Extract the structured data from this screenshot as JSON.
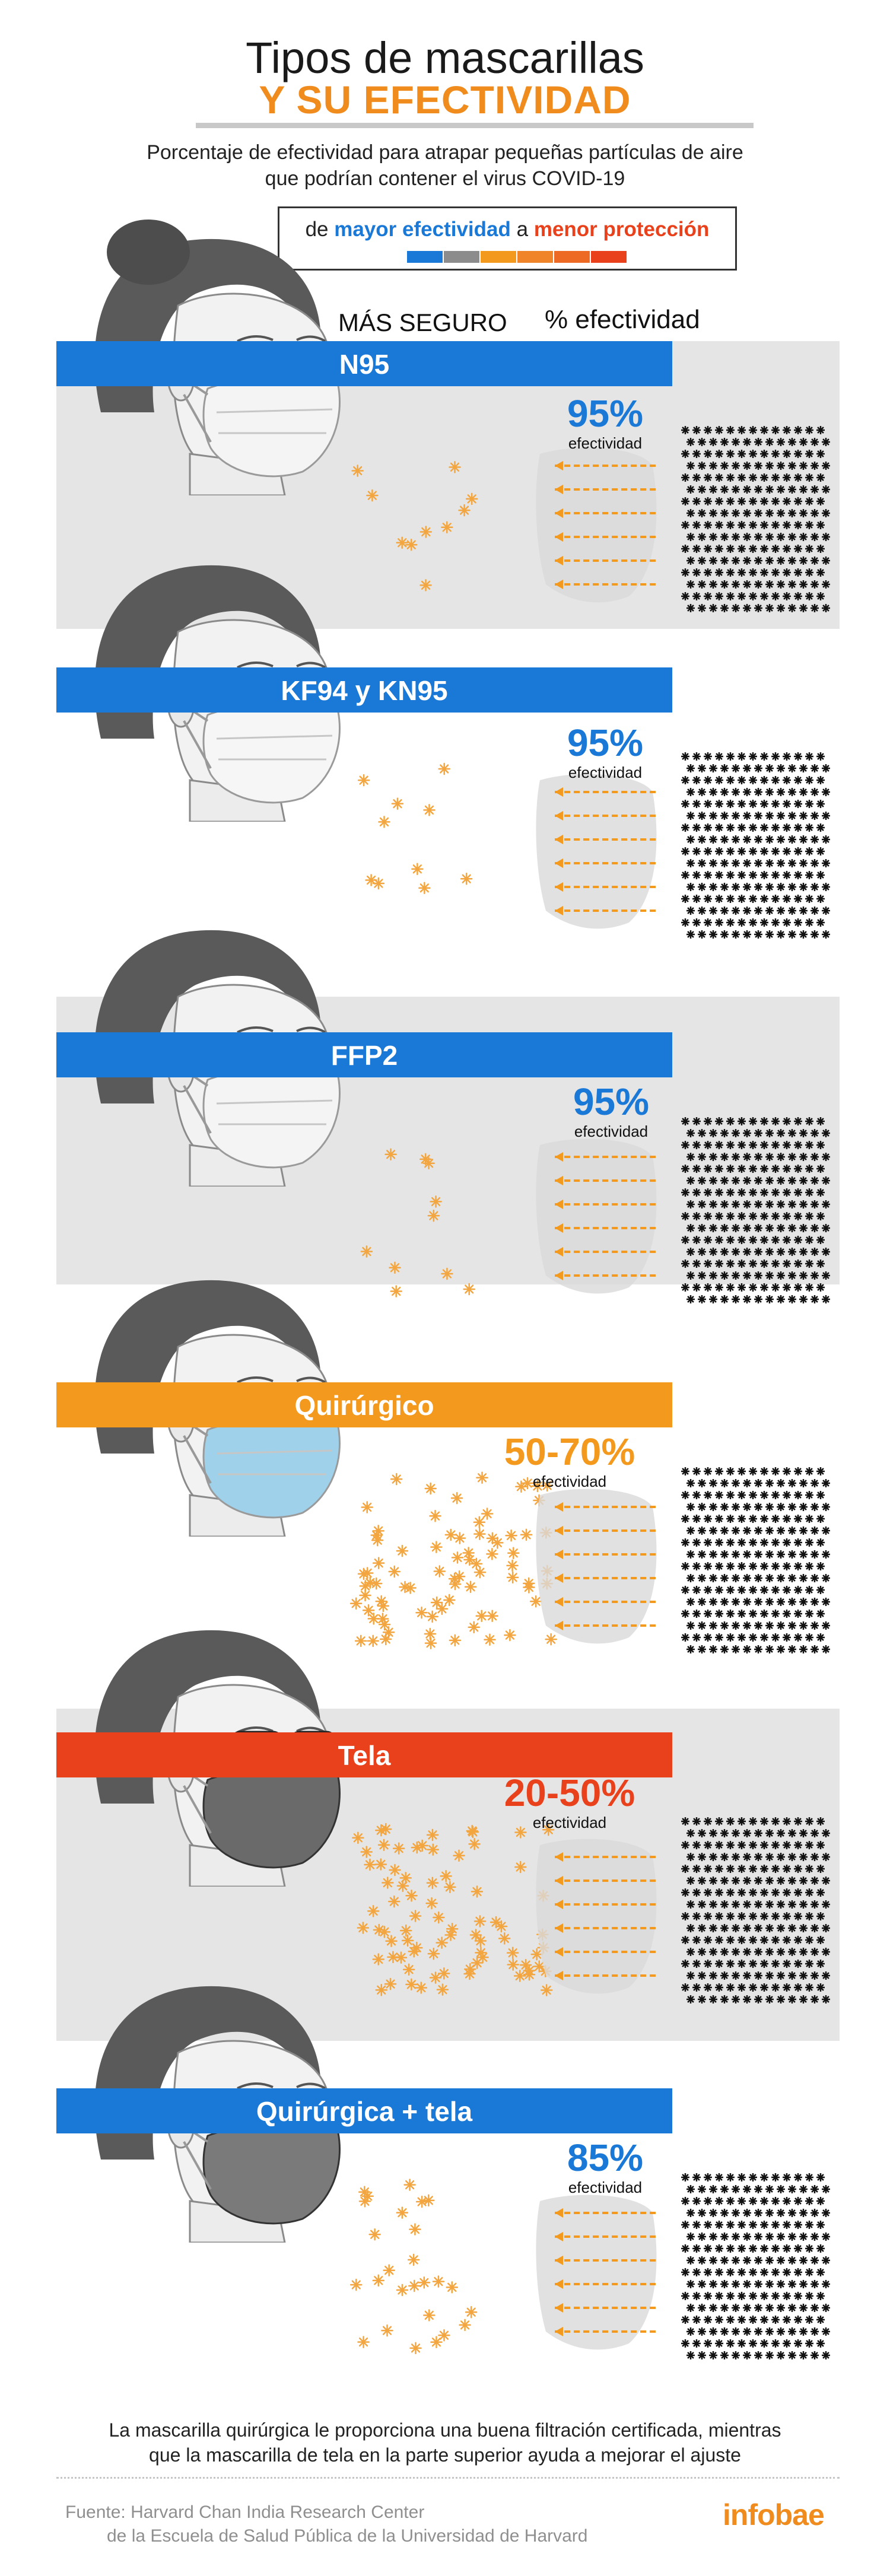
{
  "header": {
    "title_line1": "Tipos de mascarillas",
    "title_line2": "Y SU EFECTIVIDAD",
    "subtitle_line1": "Porcentaje de efectividad para atrapar pequeñas partículas de aire",
    "subtitle_line2": "que podrían contener el virus COVID-19"
  },
  "legend": {
    "prefix": "de",
    "high_label": "mayor efectividad",
    "mid": "a",
    "low_label": "menor protección",
    "high_color": "#1a78d6",
    "low_color": "#e8411c",
    "scale_colors": [
      "#1a78d6",
      "#8c8c8c",
      "#f39a1e",
      "#f08428",
      "#ec6a24",
      "#e8411c"
    ]
  },
  "column_headers": {
    "safest": "MÁS SEGURO",
    "effectiveness": "% efectividad"
  },
  "masks": [
    {
      "name": "N95",
      "percent": "95%",
      "sub": "efectividad",
      "color": "#1a78d6",
      "particles": "few"
    },
    {
      "name": "KF94 y KN95",
      "percent": "95%",
      "sub": "efectividad",
      "color": "#1a78d6",
      "particles": "few"
    },
    {
      "name": "FFP2",
      "percent": "95%",
      "sub": "efectividad",
      "color": "#1a78d6",
      "particles": "few"
    },
    {
      "name": "Quirúrgico",
      "percent": "50-70%",
      "sub": "efectividad",
      "color": "#f39a1e",
      "particles": "many"
    },
    {
      "name": "Tela",
      "percent": "20-50%",
      "sub": "efectividad",
      "color": "#e8411c",
      "particles": "many"
    },
    {
      "name": "Quirúrgica + tela",
      "percent": "85%",
      "sub": "efectividad",
      "color": "#1a78d6",
      "particles": "some"
    }
  ],
  "footer": {
    "note_line1": "La mascarilla quirúrgica le proporciona una buena filtración certificada, mientras",
    "note_line2": "que la mascarilla de tela en la parte superior ayuda a mejorar el ajuste",
    "source_line1": "Fuente:  Harvard Chan India Research Center",
    "source_line2": "de la Escuela de Salud Pública de la Universidad de Harvard",
    "logo": "infobae"
  }
}
